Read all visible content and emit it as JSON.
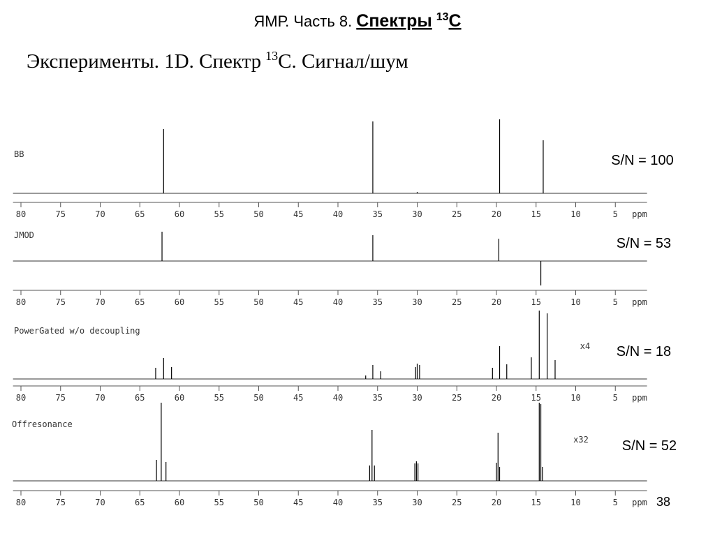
{
  "header": {
    "title": {
      "text": "ЯМР. Часть 8.",
      "emphasis": "Спектры",
      "sup": "13",
      "suffix": "C"
    },
    "subtitle": {
      "text": "Эксперименты. 1D. Спектр",
      "sup": "13",
      "suffix": "C. Сигнал/шум"
    }
  },
  "page_number": 38,
  "chart_data": [
    {
      "type": "spectrum",
      "label": "BB",
      "annotation": "S/N = 100",
      "x_label": "ppm",
      "x": [
        62,
        35.6,
        30,
        19.6,
        14.1
      ],
      "values": [
        92,
        103,
        2,
        106,
        76
      ],
      "xlim": [
        81,
        1
      ],
      "ylim": [
        -13,
        112
      ],
      "color": "#000000",
      "xticks": [
        80,
        75,
        70,
        65,
        60,
        55,
        50,
        45,
        40,
        35,
        30,
        25,
        20,
        15,
        10,
        5
      ]
    },
    {
      "type": "spectrum",
      "label": "JMOD",
      "annotation": "S/N = 53",
      "x_label": "ppm",
      "x": [
        62.2,
        35.6,
        19.7,
        14.4
      ],
      "values": [
        42,
        37,
        32,
        -35
      ],
      "xlim": [
        81,
        1
      ],
      "ylim": [
        -42,
        49
      ],
      "color": "#000000",
      "xticks": [
        80,
        75,
        70,
        65,
        60,
        55,
        50,
        45,
        40,
        35,
        30,
        25,
        20,
        15,
        10,
        5
      ]
    },
    {
      "type": "spectrum",
      "label": "PowerGated w/o decoupling",
      "annotation": "S/N = 18",
      "scale_label": "x4",
      "x_label": "ppm",
      "x": [
        63,
        62,
        61,
        36.5,
        35.6,
        34.6,
        30.2,
        30,
        29.7,
        20.5,
        19.6,
        18.7,
        15.6,
        14.6,
        13.6,
        12.6
      ],
      "values": [
        16,
        30,
        17,
        5,
        20,
        11,
        17,
        22,
        20,
        16,
        47,
        21,
        31,
        98,
        94,
        27
      ],
      "xlim": [
        81,
        1
      ],
      "ylim": [
        -10,
        103
      ],
      "color": "#000000",
      "xticks": [
        80,
        75,
        70,
        65,
        60,
        55,
        50,
        45,
        40,
        35,
        30,
        25,
        20,
        15,
        10,
        5
      ]
    },
    {
      "type": "spectrum",
      "label": "Offresonance",
      "annotation": "S/N = 52",
      "scale_label": "x32",
      "x_label": "ppm",
      "x": [
        62.9,
        62.3,
        61.7,
        36,
        35.7,
        35.4,
        30.3,
        30.1,
        29.9,
        20,
        19.8,
        19.6,
        14.6,
        14.4,
        14.2
      ],
      "values": [
        30,
        112,
        27,
        22,
        73,
        22,
        25,
        28,
        25,
        26,
        69,
        20,
        112,
        110,
        20
      ],
      "xlim": [
        81,
        1
      ],
      "ylim": [
        -14,
        112
      ],
      "color": "#000000",
      "xticks": [
        80,
        75,
        70,
        65,
        60,
        55,
        50,
        45,
        40,
        35,
        30,
        25,
        20,
        15,
        10,
        5
      ]
    }
  ]
}
